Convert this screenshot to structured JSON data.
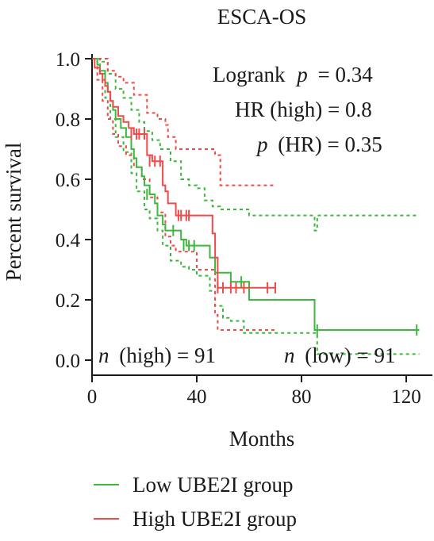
{
  "chart_data": {
    "type": "line",
    "subtype": "kaplan-meier",
    "title": "ESCA-OS",
    "xlabel": "Months",
    "ylabel": "Percent survival",
    "xlim": [
      0,
      130
    ],
    "ylim": [
      0,
      1.02
    ],
    "xticks": [
      0,
      40,
      80,
      120
    ],
    "yticks": [
      0.0,
      0.2,
      0.4,
      0.6,
      0.8,
      1.0
    ],
    "xtick_labels": [
      "0",
      "40",
      "80",
      "120"
    ],
    "ytick_labels": [
      "0.0",
      "0.2",
      "0.4",
      "0.6",
      "0.8",
      "1.0"
    ],
    "grid": false,
    "legend_position": "bottom",
    "annotations": {
      "logrank_label": "Logrank",
      "logrank_p_sym": "p",
      "logrank_value": "= 0.34",
      "hr_text": "HR (high) = 0.8",
      "phr_sym": "p",
      "phr_value": "(HR) = 0.35",
      "n_high_sym": "n",
      "n_high_text": "(high) = 91",
      "n_low_sym": "n",
      "n_low_text": "(low) = 91"
    },
    "series": [
      {
        "name": "Low UBE2I group",
        "color": "#3cb83c",
        "style": "step",
        "steps": [
          [
            0,
            1.0
          ],
          [
            2,
            0.98
          ],
          [
            3,
            0.96
          ],
          [
            5,
            0.92
          ],
          [
            6,
            0.89
          ],
          [
            7,
            0.86
          ],
          [
            8,
            0.83
          ],
          [
            9,
            0.8
          ],
          [
            11,
            0.77
          ],
          [
            13,
            0.74
          ],
          [
            15,
            0.7
          ],
          [
            16,
            0.67
          ],
          [
            17,
            0.64
          ],
          [
            19,
            0.61
          ],
          [
            20,
            0.58
          ],
          [
            22,
            0.55
          ],
          [
            24,
            0.52
          ],
          [
            25,
            0.48
          ],
          [
            27,
            0.45
          ],
          [
            28,
            0.43
          ],
          [
            34,
            0.4
          ],
          [
            36,
            0.38
          ],
          [
            40,
            0.38
          ],
          [
            45,
            0.34
          ],
          [
            47,
            0.29
          ],
          [
            53,
            0.26
          ],
          [
            60,
            0.2
          ],
          [
            85,
            0.2
          ],
          [
            85,
            0.1
          ],
          [
            125,
            0.1
          ]
        ],
        "censors": [
          [
            21,
            0.55
          ],
          [
            31,
            0.43
          ],
          [
            35,
            0.38
          ],
          [
            37,
            0.38
          ],
          [
            39,
            0.38
          ],
          [
            57,
            0.26
          ],
          [
            86,
            0.1
          ],
          [
            124,
            0.1
          ]
        ],
        "ci_upper": [
          [
            0,
            1.0
          ],
          [
            3,
            0.99
          ],
          [
            6,
            0.95
          ],
          [
            9,
            0.9
          ],
          [
            12,
            0.87
          ],
          [
            15,
            0.83
          ],
          [
            18,
            0.79
          ],
          [
            20,
            0.76
          ],
          [
            23,
            0.73
          ],
          [
            26,
            0.7
          ],
          [
            30,
            0.66
          ],
          [
            34,
            0.6
          ],
          [
            37,
            0.58
          ],
          [
            40,
            0.57
          ],
          [
            43,
            0.53
          ],
          [
            46,
            0.51
          ],
          [
            49,
            0.5
          ],
          [
            60,
            0.48
          ],
          [
            85,
            0.43
          ],
          [
            86,
            0.48
          ],
          [
            125,
            0.48
          ]
        ],
        "ci_lower": [
          [
            0,
            1.0
          ],
          [
            3,
            0.95
          ],
          [
            5,
            0.87
          ],
          [
            7,
            0.8
          ],
          [
            9,
            0.74
          ],
          [
            12,
            0.69
          ],
          [
            15,
            0.62
          ],
          [
            17,
            0.56
          ],
          [
            20,
            0.5
          ],
          [
            22,
            0.47
          ],
          [
            25,
            0.43
          ],
          [
            27,
            0.38
          ],
          [
            30,
            0.33
          ],
          [
            34,
            0.31
          ],
          [
            37,
            0.3
          ],
          [
            40,
            0.28
          ],
          [
            45,
            0.23
          ],
          [
            47,
            0.18
          ],
          [
            50,
            0.14
          ],
          [
            53,
            0.13
          ],
          [
            58,
            0.09
          ],
          [
            86,
            0.02
          ],
          [
            125,
            0.02
          ]
        ]
      },
      {
        "name": "High UBE2I group",
        "color": "#ee4b4b",
        "style": "step",
        "steps": [
          [
            0,
            1.0
          ],
          [
            1,
            0.97
          ],
          [
            3,
            0.95
          ],
          [
            4,
            0.93
          ],
          [
            5,
            0.91
          ],
          [
            6,
            0.89
          ],
          [
            7,
            0.86
          ],
          [
            8,
            0.84
          ],
          [
            10,
            0.81
          ],
          [
            12,
            0.79
          ],
          [
            14,
            0.77
          ],
          [
            16,
            0.75
          ],
          [
            21,
            0.68
          ],
          [
            23,
            0.66
          ],
          [
            27,
            0.58
          ],
          [
            28,
            0.56
          ],
          [
            29,
            0.52
          ],
          [
            32,
            0.48
          ],
          [
            46,
            0.42
          ],
          [
            47,
            0.34
          ],
          [
            48,
            0.24
          ],
          [
            70,
            0.24
          ]
        ],
        "censors": [
          [
            15,
            0.75
          ],
          [
            17,
            0.75
          ],
          [
            18,
            0.75
          ],
          [
            20,
            0.75
          ],
          [
            22,
            0.66
          ],
          [
            24,
            0.66
          ],
          [
            26,
            0.66
          ],
          [
            33,
            0.48
          ],
          [
            34,
            0.48
          ],
          [
            36,
            0.48
          ],
          [
            37,
            0.48
          ],
          [
            48,
            0.24
          ],
          [
            50,
            0.24
          ],
          [
            53,
            0.24
          ],
          [
            55,
            0.24
          ],
          [
            58,
            0.24
          ],
          [
            67,
            0.24
          ],
          [
            70,
            0.24
          ]
        ],
        "ci_upper": [
          [
            0,
            1.0
          ],
          [
            3,
            1.0
          ],
          [
            6,
            0.96
          ],
          [
            9,
            0.94
          ],
          [
            12,
            0.92
          ],
          [
            16,
            0.88
          ],
          [
            21,
            0.82
          ],
          [
            25,
            0.8
          ],
          [
            28,
            0.78
          ],
          [
            29,
            0.74
          ],
          [
            32,
            0.7
          ],
          [
            47,
            0.68
          ],
          [
            49,
            0.58
          ],
          [
            70,
            0.58
          ]
        ],
        "ci_lower": [
          [
            0,
            1.0
          ],
          [
            2,
            0.93
          ],
          [
            4,
            0.86
          ],
          [
            6,
            0.8
          ],
          [
            8,
            0.75
          ],
          [
            10,
            0.71
          ],
          [
            13,
            0.68
          ],
          [
            16,
            0.64
          ],
          [
            19,
            0.6
          ],
          [
            22,
            0.54
          ],
          [
            25,
            0.49
          ],
          [
            28,
            0.41
          ],
          [
            30,
            0.38
          ],
          [
            32,
            0.36
          ],
          [
            40,
            0.3
          ],
          [
            47,
            0.15
          ],
          [
            48,
            0.1
          ],
          [
            70,
            0.1
          ]
        ]
      }
    ]
  }
}
